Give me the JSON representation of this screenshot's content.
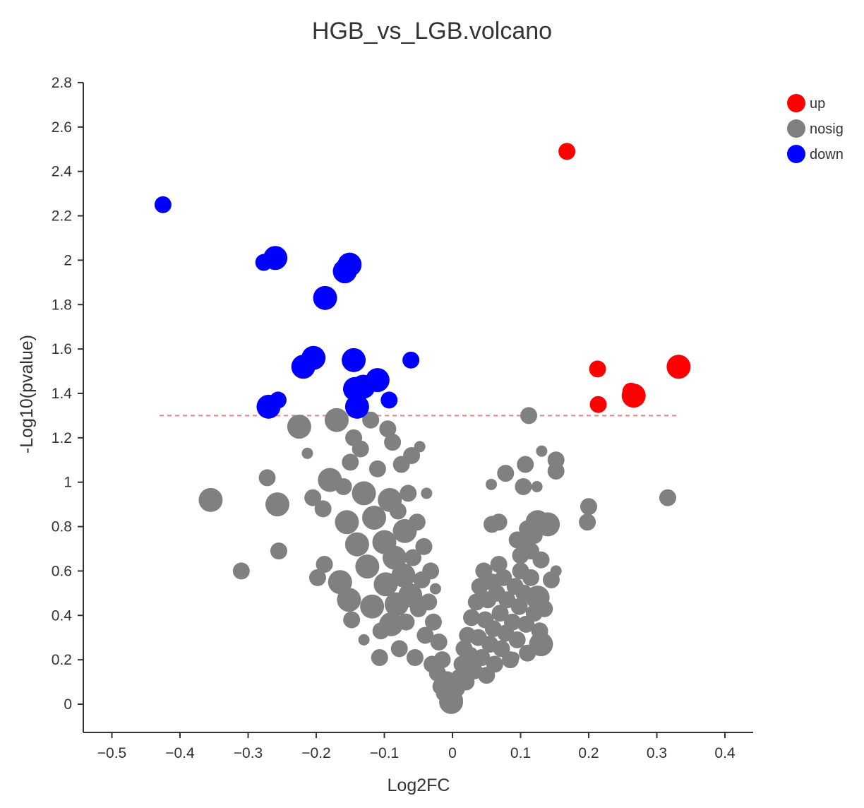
{
  "chart_data": {
    "type": "scatter",
    "title": "HGB_vs_LGB.volcano",
    "xlabel": "Log2FC",
    "ylabel": "-Log10(pvalue)",
    "xlim": [
      -0.53,
      0.44
    ],
    "ylim": [
      -0.13,
      2.8
    ],
    "x_ticks": [
      -0.5,
      -0.4,
      -0.3,
      -0.2,
      -0.1,
      0,
      0.1,
      0.2,
      0.3,
      0.4
    ],
    "x_tick_labels": [
      "−0.5",
      "−0.4",
      "−0.3",
      "−0.2",
      "−0.1",
      "0",
      "0.1",
      "0.2",
      "0.3",
      "0.4"
    ],
    "y_ticks": [
      0,
      0.2,
      0.4,
      0.6,
      0.8,
      1,
      1.2,
      1.4,
      1.6,
      1.8,
      2,
      2.2,
      2.4,
      2.6,
      2.8
    ],
    "y_tick_labels": [
      "0",
      "0.2",
      "0.4",
      "0.6",
      "0.8",
      "1",
      "1.2",
      "1.4",
      "1.6",
      "1.8",
      "2",
      "2.2",
      "2.4",
      "2.6",
      "2.8"
    ],
    "threshold": {
      "y": 1.3,
      "x_from": -0.43,
      "x_to": 0.33,
      "color": "#f08080"
    },
    "legend": {
      "position": "top-right",
      "entries": [
        "up",
        "nosig",
        "down"
      ]
    },
    "series": [
      {
        "name": "up",
        "color": "#ff0000",
        "points": [
          [
            0.168,
            2.49,
            2
          ],
          [
            0.213,
            1.51,
            2
          ],
          [
            0.214,
            1.35,
            2
          ],
          [
            0.262,
            1.41,
            2
          ],
          [
            0.266,
            1.39,
            3
          ],
          [
            0.332,
            1.52,
            3
          ]
        ]
      },
      {
        "name": "nosig",
        "color": "#808080",
        "points": [
          [
            -0.355,
            0.92,
            3
          ],
          [
            -0.31,
            0.6,
            2
          ],
          [
            -0.272,
            1.02,
            2
          ],
          [
            -0.257,
            0.9,
            3
          ],
          [
            -0.255,
            0.69,
            2
          ],
          [
            -0.225,
            1.25,
            3
          ],
          [
            -0.213,
            1.13,
            1
          ],
          [
            -0.205,
            0.93,
            2
          ],
          [
            -0.198,
            0.57,
            2
          ],
          [
            -0.19,
            0.88,
            2
          ],
          [
            -0.188,
            0.63,
            2
          ],
          [
            -0.17,
            1.28,
            3
          ],
          [
            -0.18,
            1.01,
            3
          ],
          [
            -0.16,
            0.98,
            2
          ],
          [
            -0.165,
            0.55,
            3
          ],
          [
            -0.155,
            0.82,
            3
          ],
          [
            -0.152,
            0.47,
            3
          ],
          [
            -0.148,
            0.38,
            2
          ],
          [
            -0.15,
            1.09,
            2
          ],
          [
            -0.145,
            1.2,
            2
          ],
          [
            -0.14,
            0.72,
            3
          ],
          [
            -0.135,
            1.15,
            2
          ],
          [
            -0.13,
            0.95,
            3
          ],
          [
            -0.13,
            0.29,
            1
          ],
          [
            -0.125,
            0.62,
            3
          ],
          [
            -0.12,
            1.28,
            2
          ],
          [
            -0.118,
            0.44,
            3
          ],
          [
            -0.115,
            0.84,
            3
          ],
          [
            -0.11,
            1.06,
            2
          ],
          [
            -0.107,
            0.21,
            2
          ],
          [
            -0.105,
            0.33,
            2
          ],
          [
            -0.1,
            0.73,
            3
          ],
          [
            -0.098,
            0.54,
            3
          ],
          [
            -0.095,
            1.24,
            2
          ],
          [
            -0.092,
            0.92,
            3
          ],
          [
            -0.09,
            0.36,
            3
          ],
          [
            -0.088,
            1.18,
            2
          ],
          [
            -0.085,
            0.66,
            3
          ],
          [
            -0.082,
            0.45,
            3
          ],
          [
            -0.08,
            0.87,
            2
          ],
          [
            -0.078,
            0.25,
            2
          ],
          [
            -0.075,
            1.08,
            2
          ],
          [
            -0.072,
            0.58,
            3
          ],
          [
            -0.07,
            0.78,
            3
          ],
          [
            -0.068,
            0.37,
            2
          ],
          [
            -0.065,
            0.95,
            2
          ],
          [
            -0.062,
            0.49,
            3
          ],
          [
            -0.06,
            1.12,
            2
          ],
          [
            -0.058,
            0.66,
            2
          ],
          [
            -0.055,
            0.21,
            2
          ],
          [
            -0.052,
            0.82,
            2
          ],
          [
            -0.05,
            0.43,
            2
          ],
          [
            -0.048,
            1.16,
            1
          ],
          [
            -0.045,
            0.56,
            2
          ],
          [
            -0.042,
            0.71,
            2
          ],
          [
            -0.04,
            0.31,
            2
          ],
          [
            -0.038,
            0.95,
            1
          ],
          [
            -0.035,
            0.46,
            2
          ],
          [
            -0.032,
            0.6,
            2
          ],
          [
            -0.03,
            0.18,
            2
          ],
          [
            -0.028,
            0.37,
            2
          ],
          [
            -0.025,
            0.52,
            1
          ],
          [
            -0.022,
            0.14,
            2
          ],
          [
            -0.02,
            0.28,
            2
          ],
          [
            -0.017,
            0.08,
            2
          ],
          [
            -0.015,
            0.2,
            2
          ],
          [
            -0.012,
            0.05,
            2
          ],
          [
            -0.008,
            0.11,
            2
          ],
          [
            -0.005,
            0.03,
            2
          ],
          [
            -0.002,
            0.01,
            3
          ],
          [
            0.003,
            0.02,
            2
          ],
          [
            0.006,
            0.07,
            2
          ],
          [
            0.01,
            0.12,
            2
          ],
          [
            0.014,
            0.18,
            2
          ],
          [
            0.017,
            0.25,
            2
          ],
          [
            0.02,
            0.1,
            2
          ],
          [
            0.022,
            0.31,
            2
          ],
          [
            0.026,
            0.22,
            2
          ],
          [
            0.028,
            0.39,
            2
          ],
          [
            0.032,
            0.15,
            2
          ],
          [
            0.035,
            0.46,
            2
          ],
          [
            0.038,
            0.3,
            2
          ],
          [
            0.04,
            0.53,
            2
          ],
          [
            0.043,
            0.21,
            2
          ],
          [
            0.046,
            0.6,
            2
          ],
          [
            0.048,
            0.38,
            2
          ],
          [
            0.05,
            0.13,
            2
          ],
          [
            0.052,
            0.47,
            2
          ],
          [
            0.055,
            0.27,
            2
          ],
          [
            0.058,
            0.55,
            2
          ],
          [
            0.06,
            0.34,
            2
          ],
          [
            0.062,
            0.18,
            2
          ],
          [
            0.065,
            0.5,
            2
          ],
          [
            0.068,
            0.63,
            2
          ],
          [
            0.07,
            0.41,
            2
          ],
          [
            0.072,
            0.25,
            2
          ],
          [
            0.075,
            0.57,
            2
          ],
          [
            0.078,
            0.32,
            2
          ],
          [
            0.08,
            0.47,
            2
          ],
          [
            0.085,
            0.2,
            2
          ],
          [
            0.088,
            0.37,
            2
          ],
          [
            0.092,
            0.53,
            2
          ],
          [
            0.095,
            0.29,
            2
          ],
          [
            0.098,
            0.44,
            2
          ],
          [
            0.1,
            0.6,
            2
          ],
          [
            0.105,
            0.5,
            2
          ],
          [
            0.108,
            0.36,
            2
          ],
          [
            0.11,
            0.23,
            2
          ],
          [
            0.115,
            0.57,
            2
          ],
          [
            0.12,
            0.41,
            2
          ],
          [
            0.125,
            0.48,
            3
          ],
          [
            0.128,
            0.33,
            2
          ],
          [
            0.13,
            0.27,
            3
          ],
          [
            0.135,
            0.43,
            2
          ],
          [
            0.095,
            0.74,
            2
          ],
          [
            0.1,
            0.67,
            2
          ],
          [
            0.105,
            0.72,
            2
          ],
          [
            0.11,
            0.79,
            2
          ],
          [
            0.115,
            0.69,
            2
          ],
          [
            0.12,
            0.76,
            2
          ],
          [
            0.125,
            0.82,
            3
          ],
          [
            0.14,
            0.81,
            3
          ],
          [
            0.145,
            0.56,
            2
          ],
          [
            0.152,
            0.6,
            1
          ],
          [
            0.13,
            0.65,
            2
          ],
          [
            0.068,
            0.82,
            2
          ],
          [
            0.058,
            0.81,
            2
          ],
          [
            0.078,
            1.04,
            2
          ],
          [
            0.057,
            0.99,
            1
          ],
          [
            0.107,
            1.08,
            2
          ],
          [
            0.104,
            0.98,
            2
          ],
          [
            0.124,
            0.98,
            1
          ],
          [
            0.131,
            1.14,
            1
          ],
          [
            0.152,
            1.1,
            2
          ],
          [
            0.152,
            1.05,
            2
          ],
          [
            0.2,
            0.89,
            2
          ],
          [
            0.198,
            0.82,
            2
          ],
          [
            0.316,
            0.93,
            2
          ],
          [
            0.112,
            1.3,
            2
          ],
          [
            0.09,
            0.21,
            1
          ],
          [
            0.0,
            0.0,
            2
          ]
        ]
      },
      {
        "name": "down",
        "color": "#0000ff",
        "points": [
          [
            -0.425,
            2.25,
            2
          ],
          [
            -0.277,
            1.99,
            2
          ],
          [
            -0.26,
            2.01,
            3
          ],
          [
            -0.187,
            1.83,
            3
          ],
          [
            -0.158,
            1.95,
            3
          ],
          [
            -0.151,
            1.98,
            3
          ],
          [
            -0.219,
            1.52,
            3
          ],
          [
            -0.204,
            1.56,
            3
          ],
          [
            -0.145,
            1.55,
            3
          ],
          [
            -0.061,
            1.55,
            2
          ],
          [
            -0.143,
            1.42,
            3
          ],
          [
            -0.131,
            1.43,
            3
          ],
          [
            -0.11,
            1.46,
            3
          ],
          [
            -0.256,
            1.37,
            2
          ],
          [
            -0.27,
            1.34,
            3
          ],
          [
            -0.14,
            1.34,
            3
          ],
          [
            -0.093,
            1.37,
            2
          ]
        ]
      }
    ]
  }
}
